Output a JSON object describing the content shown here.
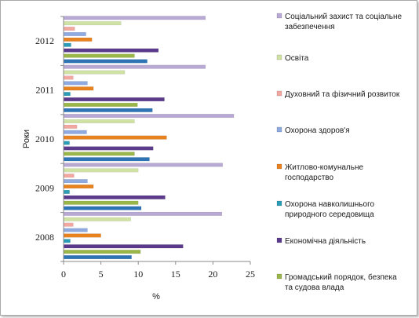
{
  "chart_data": {
    "type": "bar",
    "orientation": "horizontal",
    "categories": [
      "2008",
      "2009",
      "2010",
      "2011",
      "2012"
    ],
    "xlabel": "%",
    "ylabel": "Роки",
    "xlim": [
      0,
      25
    ],
    "xticks": [
      "0",
      "5",
      "10",
      "15",
      "20",
      "25"
    ],
    "grid": false,
    "legend_position": "right",
    "series": [
      {
        "name": "Громадський порядок, безпека та судова влада",
        "color": "#9ab548",
        "values": [
          10.3,
          10.0,
          9.5,
          9.9,
          9.5
        ]
      },
      {
        "name": "Економічна діяльність",
        "color": "#5b3a8c",
        "values": [
          16.0,
          13.6,
          12.0,
          13.5,
          12.7
        ]
      },
      {
        "name": "Охорона навколишнього природного середовища",
        "color": "#2b9cb5",
        "values": [
          0.9,
          0.8,
          0.8,
          0.9,
          1.0
        ]
      },
      {
        "name": "Житлово-комунальне господарство",
        "color": "#e8821e",
        "values": [
          5.0,
          4.0,
          13.8,
          4.0,
          3.8
        ]
      },
      {
        "name": "Охорона здоров'я",
        "color": "#8eaae0",
        "values": [
          3.2,
          3.2,
          3.1,
          3.2,
          3.0
        ]
      },
      {
        "name": "Духовний та фізичний розвиток",
        "color": "#f2a8a0",
        "values": [
          1.3,
          1.4,
          1.8,
          1.3,
          1.5
        ]
      },
      {
        "name": "Освіта",
        "color": "#cfe2a4",
        "values": [
          9.0,
          10.0,
          9.5,
          8.2,
          7.7
        ]
      },
      {
        "name": "Соціальний захист та соціальне забезпечення",
        "color": "#b8a8d4",
        "values": [
          21.2,
          21.3,
          22.8,
          19.0,
          19.0
        ]
      }
    ],
    "extra_bars_color": "#2e74b5",
    "extra_bars_values": [
      9.1,
      10.4,
      11.5,
      11.9,
      11.2
    ]
  }
}
